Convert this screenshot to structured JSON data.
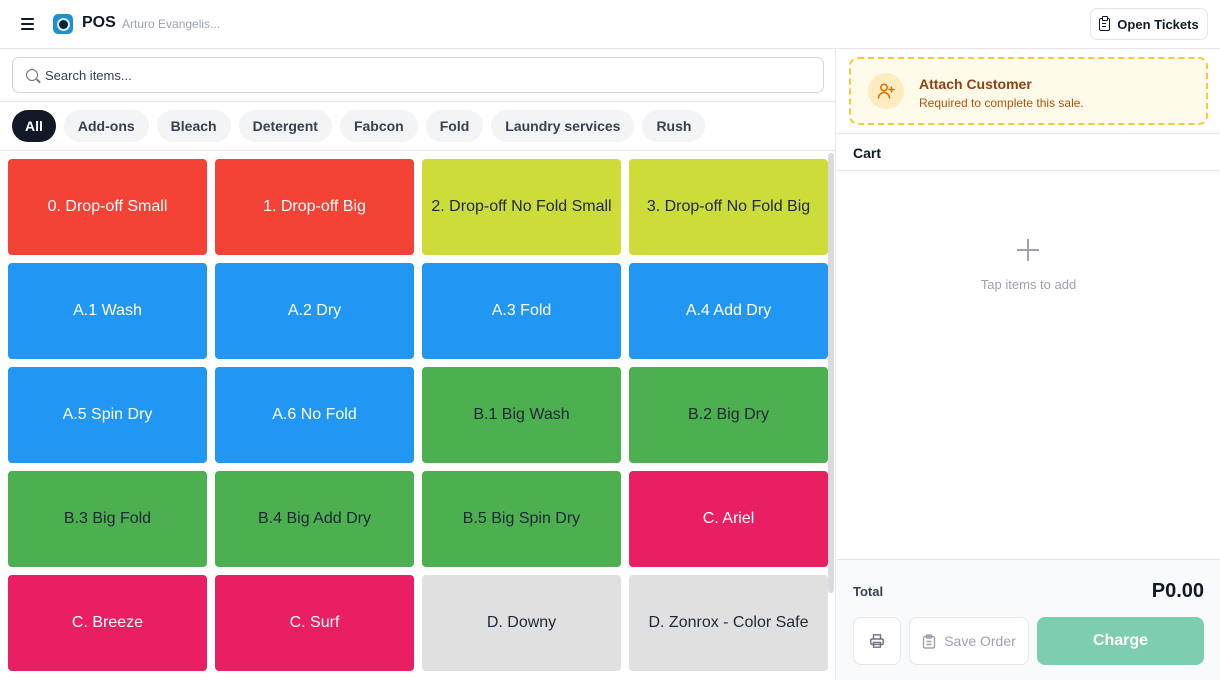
{
  "header": {
    "title": "POS",
    "user": "Arturo Evangelis...",
    "open_tickets_label": "Open Tickets"
  },
  "search": {
    "placeholder": "Search items..."
  },
  "filters": [
    "All",
    "Add-ons",
    "Bleach",
    "Detergent",
    "Fabcon",
    "Fold",
    "Laundry services",
    "Rush"
  ],
  "active_filter": "All",
  "colors": {
    "red": "#f44336",
    "lime": "#cddc39",
    "blue": "#2196f3",
    "green": "#4caf50",
    "pink": "#e91e63",
    "grey": "#e0e0e0",
    "charge": "#7dcdb0",
    "attach_border": "#f6c93a"
  },
  "items": [
    {
      "label": "0. Drop-off Small",
      "color": "red"
    },
    {
      "label": "1. Drop-off Big",
      "color": "red"
    },
    {
      "label": "2. Drop-off No Fold Small",
      "color": "lime"
    },
    {
      "label": "3. Drop-off No Fold Big",
      "color": "lime"
    },
    {
      "label": "A.1 Wash",
      "color": "blue"
    },
    {
      "label": "A.2 Dry",
      "color": "blue"
    },
    {
      "label": "A.3 Fold",
      "color": "blue"
    },
    {
      "label": "A.4 Add Dry",
      "color": "blue"
    },
    {
      "label": "A.5 Spin Dry",
      "color": "blue"
    },
    {
      "label": "A.6 No Fold",
      "color": "blue"
    },
    {
      "label": "B.1 Big Wash",
      "color": "green"
    },
    {
      "label": "B.2 Big Dry",
      "color": "green"
    },
    {
      "label": "B.3 Big Fold",
      "color": "green"
    },
    {
      "label": "B.4 Big Add Dry",
      "color": "green"
    },
    {
      "label": "B.5 Big Spin Dry",
      "color": "green"
    },
    {
      "label": "C. Ariel",
      "color": "pink"
    },
    {
      "label": "C. Breeze",
      "color": "pink"
    },
    {
      "label": "C. Surf",
      "color": "pink"
    },
    {
      "label": "D. Downy",
      "color": "grey"
    },
    {
      "label": "D. Zonrox - Color Safe",
      "color": "grey"
    }
  ],
  "customer": {
    "title": "Attach Customer",
    "subtitle": "Required to complete this sale."
  },
  "cart": {
    "title": "Cart",
    "empty_text": "Tap items to add"
  },
  "footer": {
    "total_label": "Total",
    "total_value": "P0.00",
    "save_label": "Save Order",
    "charge_label": "Charge"
  }
}
